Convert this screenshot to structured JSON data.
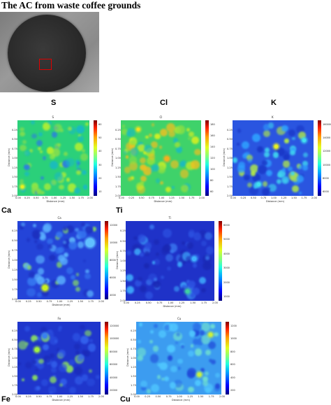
{
  "title": "The AC from waste coffee grounds",
  "colors": {
    "map_low": "#1f3ccf",
    "highlight_box": "#e00000"
  },
  "axis": {
    "xlabel": "Distance (mm)",
    "ylabel": "Distance (mm)",
    "xticks": [
      "0.00",
      "0.25",
      "0.50",
      "0.75",
      "1.00",
      "1.25",
      "1.50",
      "1.75",
      "2.00"
    ],
    "yticks": [
      "0.25",
      "0.50",
      "0.75",
      "1.00",
      "1.25",
      "1.50",
      "1.75",
      "2.00"
    ]
  },
  "panels": [
    {
      "id": "s",
      "big_label": "S",
      "small_title": "S",
      "cbar_ticks": [
        "60",
        "50",
        "40",
        "30",
        "20",
        "10"
      ]
    },
    {
      "id": "cl",
      "big_label": "Cl",
      "small_title": "Cl",
      "cbar_ticks": [
        "180",
        "160",
        "140",
        "120",
        "100",
        "80",
        "60"
      ]
    },
    {
      "id": "k",
      "big_label": "K",
      "small_title": "K",
      "cbar_ticks": [
        "160000",
        "14000",
        "12000",
        "10000",
        "8000",
        "6000"
      ]
    },
    {
      "id": "ca",
      "big_label": "Ca",
      "small_title": "Ca",
      "cbar_ticks": [
        "12000",
        "10000",
        "8000",
        "6000",
        "4000"
      ]
    },
    {
      "id": "ti",
      "big_label": "Ti",
      "small_title": "Ti",
      "cbar_ticks": [
        "6000",
        "5000",
        "4000",
        "3000",
        "2000",
        "1000"
      ]
    },
    {
      "id": "fe",
      "big_label": "Fe",
      "small_title": "Fe",
      "cbar_ticks": [
        "120000",
        "100000",
        "80000",
        "60000",
        "40000",
        "20000"
      ]
    },
    {
      "id": "cu",
      "big_label": "Cu",
      "small_title": "Cu",
      "cbar_ticks": [
        "1200",
        "1000",
        "800",
        "600",
        "400",
        "200"
      ]
    }
  ]
}
